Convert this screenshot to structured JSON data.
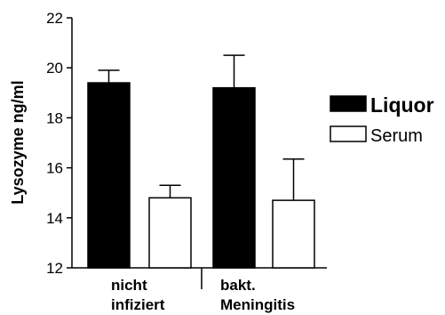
{
  "chart_data": {
    "type": "bar",
    "title": "",
    "xlabel": "",
    "ylabel": "Lysozyme ng/ml",
    "ylim": [
      12,
      22
    ],
    "yticks": [
      12,
      14,
      16,
      18,
      20,
      22
    ],
    "categories": [
      {
        "lines": [
          "nicht",
          "infiziert"
        ]
      },
      {
        "lines": [
          "bakt.",
          "Meningitis"
        ]
      }
    ],
    "series": [
      {
        "name": "Liquor",
        "color": "#000000",
        "values": [
          19.4,
          19.2
        ],
        "errors": [
          0.5,
          1.3
        ]
      },
      {
        "name": "Serum",
        "color": "#ffffff",
        "values": [
          14.8,
          14.7
        ],
        "errors": [
          0.5,
          1.65
        ]
      }
    ],
    "legend": "right",
    "grid": false
  }
}
